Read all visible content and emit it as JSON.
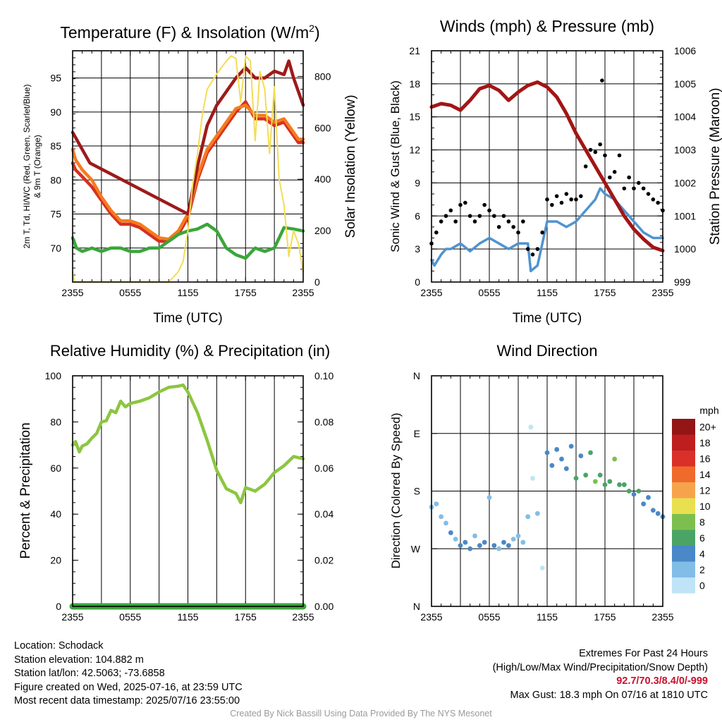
{
  "panels": {
    "temp": {
      "title_prefix": "Temperature (F) & Insolation (W/m",
      "title_sup": "2",
      "title_suffix": ")",
      "ylabel_left_line1": "2m T, Td, HI/WC (Red, Green, Scarlet/Blue)",
      "ylabel_left_line2": "& 9m T (Orange)",
      "ylabel_right": "Solar Insolation (Yellow)",
      "xlabel": "Time (UTC)"
    },
    "winds": {
      "title": "Winds (mph) & Pressure (mb)",
      "ylabel_left": "Sonic Wind & Gust (Blue, Black)",
      "ylabel_right": "Station Pressure (Maroon)",
      "xlabel": "Time (UTC)"
    },
    "rh": {
      "title": "Relative Humidity (%) & Precipitation (in)",
      "ylabel_left": "Percent & Precipitation"
    },
    "wdir": {
      "title": "Wind Direction",
      "ylabel_left": "Direction (Colored By Speed)",
      "colorbar_title": "mph"
    }
  },
  "chart_data": [
    {
      "type": "line",
      "panel": "temp",
      "x_ticks": [
        "2355",
        "0555",
        "1155",
        "1755",
        "2355"
      ],
      "x_range_hours": [
        0,
        24
      ],
      "ylim_left": [
        65,
        99
      ],
      "yticks_left": [
        70,
        75,
        80,
        85,
        90,
        95
      ],
      "ylim_right": [
        0,
        900
      ],
      "yticks_right": [
        0,
        200,
        400,
        600,
        800
      ],
      "series": [
        {
          "name": "2m T",
          "color": "#d7301f",
          "axis": "left",
          "x": [
            0,
            0.3,
            1,
            2,
            3,
            4,
            5,
            6,
            7,
            8,
            9,
            10,
            11,
            12,
            13,
            14,
            15,
            16,
            17,
            18,
            19,
            20,
            21,
            22,
            23,
            23.5,
            24
          ],
          "y": [
            82.5,
            81.5,
            80.5,
            79,
            77,
            75,
            73.5,
            73.5,
            73,
            72,
            71,
            71,
            72,
            74.5,
            80,
            84,
            86,
            88,
            90,
            91.5,
            89,
            89,
            88,
            88.5,
            86.5,
            85.5,
            85.5
          ]
        },
        {
          "name": "9m T",
          "color": "#f47b20",
          "axis": "left",
          "x": [
            0,
            0.3,
            1,
            2,
            3,
            4,
            5,
            6,
            7,
            8,
            9,
            10,
            11,
            12,
            13,
            14,
            15,
            16,
            17,
            18,
            19,
            20,
            21,
            22,
            23,
            23.5,
            24
          ],
          "y": [
            84.5,
            83,
            81.5,
            80,
            77.5,
            75.5,
            74,
            74,
            73.5,
            72.5,
            71.5,
            71.3,
            72.5,
            75,
            80.5,
            84.5,
            86.5,
            88.5,
            90.5,
            91,
            89.5,
            89.5,
            88.5,
            89,
            87,
            86,
            86
          ]
        },
        {
          "name": "HI/WC",
          "color": "#9e1a1a",
          "axis": "left",
          "x": [
            0,
            0.4,
            0.8,
            1.2,
            1.8,
            12,
            13,
            14,
            15,
            16,
            17,
            18,
            19,
            20,
            21,
            22,
            22.5,
            23,
            23.5,
            24
          ],
          "y": [
            87,
            86,
            85,
            84,
            82.5,
            75,
            82,
            88,
            91,
            93,
            95,
            96.5,
            95,
            95,
            96,
            95.5,
            97.5,
            95,
            93,
            91
          ]
        },
        {
          "name": "2m Td",
          "color": "#3aa63a",
          "axis": "left",
          "x": [
            0,
            0.4,
            1,
            2,
            3,
            4,
            5,
            6,
            7,
            8,
            9,
            10,
            11,
            12,
            13,
            14,
            15,
            16,
            17,
            18,
            19,
            20,
            21,
            22,
            23,
            24
          ],
          "y": [
            71.5,
            70,
            69.5,
            70,
            69.5,
            70,
            70,
            69.5,
            69.5,
            70,
            70,
            71,
            72,
            72.5,
            72.8,
            73.5,
            72.5,
            70,
            69,
            68.5,
            70,
            69.5,
            70,
            73,
            72.8,
            72.5
          ]
        },
        {
          "name": "Solar Insolation",
          "color": "#f3dd55",
          "axis": "right",
          "x": [
            0,
            0.2,
            1,
            2,
            3,
            4,
            5,
            6,
            7,
            8,
            9,
            10,
            11,
            11.5,
            12,
            12.5,
            13,
            13.5,
            14,
            15,
            16,
            16.5,
            17,
            17.5,
            18,
            18.5,
            19,
            19.5,
            20,
            20.5,
            21,
            21.5,
            22,
            22.5,
            23,
            23.5,
            24
          ],
          "y": [
            40,
            0,
            0,
            0,
            0,
            0,
            0,
            0,
            0,
            0,
            0,
            0,
            40,
            80,
            200,
            380,
            500,
            650,
            750,
            810,
            860,
            880,
            870,
            700,
            880,
            860,
            550,
            820,
            750,
            500,
            760,
            400,
            300,
            100,
            200,
            150,
            40
          ]
        }
      ]
    },
    {
      "type": "line",
      "panel": "winds",
      "x_ticks": [
        "2355",
        "0555",
        "1155",
        "1755",
        "2355"
      ],
      "x_range_hours": [
        0,
        24
      ],
      "ylim_left": [
        0,
        21
      ],
      "yticks_left": [
        0,
        3,
        6,
        9,
        12,
        15,
        18,
        21
      ],
      "ylim_right": [
        999,
        1006
      ],
      "yticks_right": [
        999,
        1000,
        1001,
        1002,
        1003,
        1004,
        1005,
        1006
      ],
      "series": [
        {
          "name": "Sonic Wind",
          "color": "#4f93cf",
          "axis": "left",
          "x": [
            0,
            0.3,
            1,
            1.5,
            2,
            3,
            4,
            5,
            6,
            7,
            8,
            9,
            10,
            10.3,
            11,
            11.5,
            12,
            13,
            14,
            15,
            16,
            17,
            17.5,
            18,
            19,
            20,
            21,
            22,
            23,
            24
          ],
          "y": [
            2,
            1.5,
            2.5,
            3,
            3,
            3.5,
            2.8,
            3.5,
            4,
            3.5,
            3,
            3.5,
            3.5,
            1,
            1.5,
            3.5,
            5.5,
            5.5,
            5,
            5.5,
            6.5,
            7.5,
            8.5,
            8,
            7.5,
            6.5,
            5.5,
            4.5,
            4,
            4
          ]
        },
        {
          "name": "Station Pressure",
          "color": "#a31515",
          "axis": "right",
          "x": [
            0,
            1,
            2,
            3,
            4,
            5,
            6,
            7,
            8,
            9,
            10,
            11,
            12,
            13,
            14,
            15,
            16,
            17,
            18,
            19,
            20,
            21,
            22,
            23,
            24
          ],
          "y": [
            1004.3,
            1004.4,
            1004.35,
            1004.2,
            1004.5,
            1004.85,
            1004.95,
            1004.8,
            1004.5,
            1004.75,
            1004.95,
            1005.05,
            1004.9,
            1004.6,
            1004.1,
            1003.5,
            1003.0,
            1002.5,
            1002.0,
            1001.5,
            1001.0,
            1000.6,
            1000.3,
            1000.05,
            999.95
          ]
        }
      ],
      "scatter": {
        "name": "Gust",
        "color": "#000000",
        "axis": "left",
        "x": [
          0,
          0.5,
          1,
          1.5,
          2,
          2.5,
          3,
          3.5,
          4,
          4.5,
          5,
          5.5,
          6,
          6.5,
          7,
          7.5,
          8,
          8.5,
          9,
          9.5,
          10,
          10.5,
          11,
          11.5,
          12,
          12.5,
          13,
          13.5,
          14,
          14.5,
          15,
          15.5,
          16,
          16.5,
          17,
          17.5,
          17.7,
          18,
          18.5,
          19,
          19.5,
          20,
          20.5,
          21,
          21.5,
          22,
          22.5,
          23,
          23.5,
          24
        ],
        "y": [
          3.5,
          4.5,
          5.5,
          6,
          6.5,
          5.5,
          7,
          7.2,
          6,
          5.5,
          6,
          7,
          6.5,
          6,
          5,
          6,
          5.5,
          5,
          4.5,
          5.5,
          3,
          2.5,
          3,
          4.5,
          7.5,
          7,
          7.8,
          7.2,
          8,
          7.5,
          7.5,
          7.8,
          10.5,
          12,
          11.8,
          12.5,
          18.3,
          11.5,
          9.5,
          10,
          11.5,
          8.5,
          9.5,
          8.5,
          9,
          8.5,
          8,
          7.5,
          7.2,
          6.5
        ]
      }
    },
    {
      "type": "line",
      "panel": "rh",
      "x_ticks": [
        "2355",
        "0555",
        "1155",
        "1755",
        "2355"
      ],
      "x_range_hours": [
        0,
        24
      ],
      "ylim_left": [
        0,
        100
      ],
      "yticks_left": [
        0,
        20,
        40,
        60,
        80,
        100
      ],
      "ylim_right": [
        0,
        0.1
      ],
      "yticks_right": [
        "0.00",
        "0.02",
        "0.04",
        "0.06",
        "0.08",
        "0.10"
      ],
      "series": [
        {
          "name": "Relative Humidity",
          "color": "#8cc641",
          "axis": "left",
          "x": [
            0,
            0.3,
            0.7,
            1,
            1.5,
            2,
            2.5,
            3,
            3.5,
            4,
            4.5,
            5,
            5.5,
            6,
            7,
            8,
            9,
            10,
            11,
            11.5,
            12,
            13,
            14,
            15,
            16,
            17,
            17.5,
            18,
            19,
            20,
            21,
            22,
            23,
            24
          ],
          "y": [
            70,
            71.5,
            67,
            69.5,
            70.5,
            73,
            75,
            80,
            80.5,
            85,
            84,
            89,
            86.5,
            88,
            89,
            90.5,
            93,
            95,
            95.5,
            96,
            93,
            84,
            72,
            59,
            51,
            49,
            45,
            51.5,
            50,
            53,
            58,
            61,
            65,
            64
          ]
        },
        {
          "name": "Precipitation",
          "color": "#3aa63a",
          "axis": "right",
          "x": [
            0,
            24
          ],
          "y": [
            0,
            0
          ]
        }
      ]
    },
    {
      "type": "scatter",
      "panel": "wdir",
      "x_ticks": [
        "2355",
        "0555",
        "1155",
        "1755",
        "2355"
      ],
      "x_range_hours": [
        0,
        24
      ],
      "y_ticks": [
        "N",
        "E",
        "S",
        "W",
        "N"
      ],
      "y_tick_values_deg": [
        0,
        90,
        180,
        270,
        360
      ],
      "colorbar": {
        "labels": [
          "0",
          "2",
          "4",
          "6",
          "8",
          "10",
          "12",
          "14",
          "16",
          "18",
          "20+"
        ],
        "colors": [
          "#bfe4f7",
          "#82bde8",
          "#4a88c7",
          "#4aa466",
          "#7dbf4e",
          "#e8e04e",
          "#f6a34c",
          "#ef6a2b",
          "#d9302a",
          "#be1e1e",
          "#931515"
        ]
      },
      "points": {
        "x": [
          0,
          0.5,
          1,
          1.5,
          2,
          2.5,
          3,
          3.5,
          4,
          4.5,
          5,
          5.5,
          6,
          6.5,
          7,
          7.5,
          8,
          8.5,
          9,
          9.5,
          10,
          10.3,
          10.5,
          11,
          11.5,
          12,
          12.5,
          13,
          13.5,
          14,
          14.5,
          15,
          15.5,
          16,
          16.5,
          17,
          17.5,
          18,
          18.5,
          19,
          19.5,
          20,
          20.5,
          21,
          21.5,
          22,
          22.5,
          23,
          23.5,
          24
        ],
        "y": [
          155,
          160,
          140,
          130,
          115,
          105,
          95,
          100,
          90,
          110,
          95,
          100,
          170,
          95,
          90,
          100,
          95,
          105,
          110,
          100,
          140,
          280,
          200,
          145,
          60,
          240,
          220,
          245,
          230,
          215,
          250,
          200,
          235,
          205,
          240,
          195,
          205,
          190,
          195,
          230,
          190,
          190,
          180,
          175,
          180,
          160,
          170,
          150,
          145,
          140
        ],
        "speed": [
          3,
          2,
          3,
          2,
          4,
          3,
          4,
          4,
          4,
          3,
          4,
          4,
          2,
          4,
          3,
          4,
          4,
          3,
          3,
          2,
          2,
          1,
          1,
          2,
          1,
          4,
          4,
          4,
          5,
          4,
          5,
          6,
          4,
          7,
          6,
          8,
          6,
          7,
          6,
          8,
          7,
          6,
          6,
          5,
          6,
          4,
          5,
          4,
          4,
          4
        ]
      }
    }
  ],
  "footer": {
    "location": "Location: Schodack",
    "elevation": "Station elevation: 104.882 m",
    "latlon": "Station lat/lon: 42.5063; -73.6858",
    "created": "Figure created on Wed, 2025-07-16, at 23:59 UTC",
    "recent": "Most recent data timestamp: 2025/07/16 23:55:00",
    "extremes_title": "Extremes For Past 24 Hours",
    "extremes_sub": "(High/Low/Max Wind/Precipitation/Snow Depth)",
    "extremes_values": "92.7/70.3/8.4/0/-999",
    "max_gust": "Max Gust: 18.3 mph On 07/16 at 1810 UTC",
    "credit": "Created By Nick Bassill Using Data Provided By The NYS Mesonet"
  }
}
